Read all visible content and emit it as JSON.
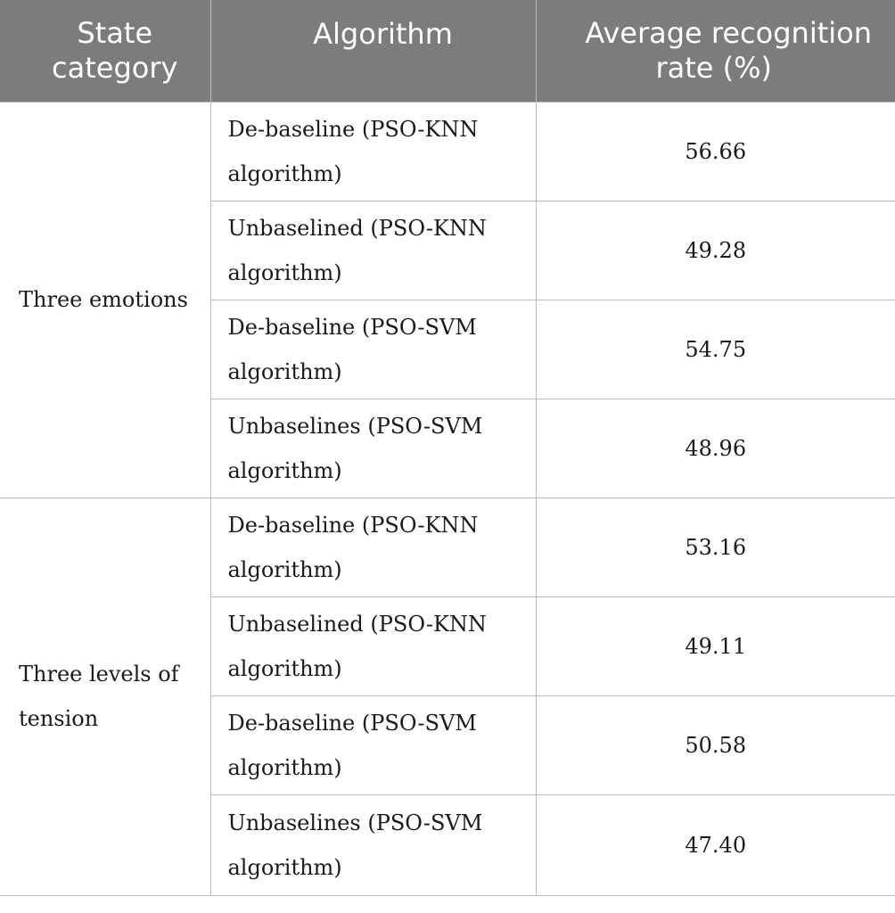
{
  "header": {
    "col1": [
      "State",
      "category"
    ],
    "col2": "Algorithm",
    "col3": [
      "Average recognition",
      "rate (%)"
    ]
  },
  "groups": [
    {
      "category": "Three emotions",
      "rows": [
        {
          "alg": [
            "De-baseline (PSO-KNN",
            "algorithm)"
          ],
          "value": "56.66"
        },
        {
          "alg": [
            "Unbaselined (PSO-KNN",
            "algorithm)"
          ],
          "value": "49.28"
        },
        {
          "alg": [
            "De-baseline (PSO-SVM",
            "algorithm)"
          ],
          "value": "54.75"
        },
        {
          "alg": [
            "Unbaselines (PSO-SVM",
            "algorithm)"
          ],
          "value": "48.96"
        }
      ]
    },
    {
      "category": [
        "Three levels of",
        "tension"
      ],
      "rows": [
        {
          "alg": [
            "De-baseline (PSO-KNN",
            "algorithm)"
          ],
          "value": "53.16"
        },
        {
          "alg": [
            "Unbaselined (PSO-KNN",
            "algorithm)"
          ],
          "value": "49.11"
        },
        {
          "alg": [
            "De-baseline (PSO-SVM",
            "algorithm)"
          ],
          "value": "50.58"
        },
        {
          "alg": [
            "Unbaselines (PSO-SVM",
            "algorithm)"
          ],
          "value": "47.40"
        }
      ]
    }
  ]
}
